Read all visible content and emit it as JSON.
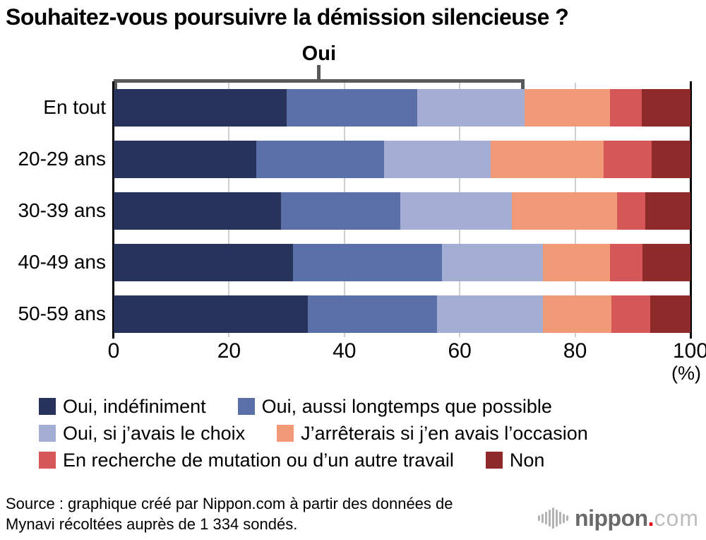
{
  "title": "Souhaitez-vous poursuivre la démission silencieuse ?",
  "chart_data": {
    "type": "bar",
    "orientation": "horizontal",
    "stacked": true,
    "title": "Souhaitez-vous poursuivre la démission silencieuse ?",
    "categories": [
      "En tout",
      "20-29 ans",
      "30-39 ans",
      "40-49 ans",
      "50-59 ans"
    ],
    "series": [
      {
        "name": "Oui, indéfiniment",
        "color": "#28335b",
        "values": [
          30.0,
          24.7,
          29.0,
          31.1,
          33.6
        ]
      },
      {
        "name": "Oui, aussi longtemps que possible",
        "color": "#5b6fa9",
        "values": [
          22.6,
          22.2,
          20.7,
          25.8,
          22.5
        ]
      },
      {
        "name": "Oui, si j’avais le choix",
        "color": "#a4aed4",
        "values": [
          18.6,
          18.5,
          19.3,
          17.5,
          18.3
        ]
      },
      {
        "name": "J’arrêterais si j’en avais l’occasion",
        "color": "#f09a78",
        "values": [
          14.8,
          19.6,
          18.3,
          11.7,
          11.9
        ]
      },
      {
        "name": "En recherche de mutation ou d’un autre travail",
        "color": "#d65757",
        "values": [
          5.5,
          8.3,
          4.9,
          5.6,
          6.7
        ]
      },
      {
        "name": "Non",
        "color": "#8e2a2a",
        "values": [
          8.5,
          6.7,
          7.8,
          8.3,
          7.0
        ]
      }
    ],
    "x_ticks": [
      0,
      20,
      40,
      60,
      80,
      100
    ],
    "xlim": [
      0,
      100
    ],
    "x_unit": "(%)",
    "grid": true,
    "legend_position": "bottom",
    "legend_rows": [
      [
        0,
        1
      ],
      [
        2,
        3
      ],
      [
        4,
        5
      ]
    ],
    "annotation": {
      "label": "Oui",
      "covers_series": [
        "Oui, indéfiniment",
        "Oui, aussi longtemps que possible",
        "Oui, si j’avais le choix"
      ],
      "span_percent_on_row": "En tout"
    }
  },
  "source": {
    "line1": "Source : graphique créé par Nippon.com à partir des données de",
    "line2": "Mynavi récoltées auprès de 1 334 sondés."
  },
  "logo": {
    "icon": "soundwave-icon",
    "name": "nippon",
    "dot": ".",
    "tld": "com"
  }
}
